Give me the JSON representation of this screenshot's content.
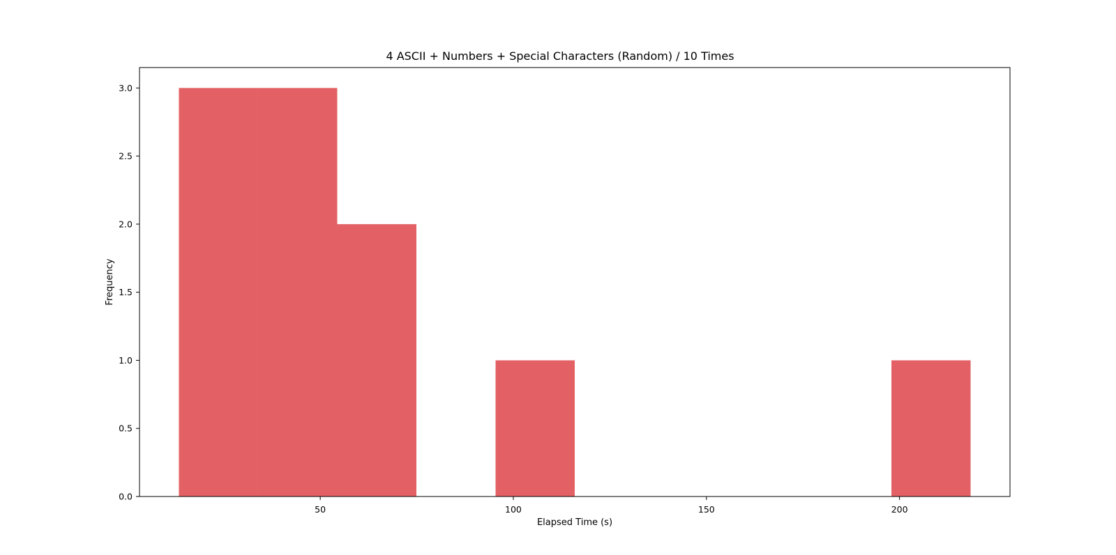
{
  "chart_data": {
    "type": "bar",
    "title": "4 ASCII + Numbers + Special Characters (Random) / 10 Times",
    "xlabel": "Elapsed Time (s)",
    "ylabel": "Frequency",
    "xlim": [
      3.2,
      228.6
    ],
    "ylim": [
      0,
      3.15
    ],
    "xticks": [
      50,
      100,
      150,
      200
    ],
    "xtick_labels": [
      "50",
      "100",
      "150",
      "200"
    ],
    "yticks": [
      0,
      0.5,
      1,
      1.5,
      2,
      2.5,
      3
    ],
    "ytick_labels": [
      "0.0",
      "0.5",
      "1.0",
      "1.5",
      "2.0",
      "2.5",
      "3.0"
    ],
    "bin_edges": [
      13.4,
      33.9,
      54.4,
      74.9,
      95.4,
      115.9,
      136.4,
      156.9,
      177.4,
      197.9,
      218.4
    ],
    "values": [
      3,
      3,
      2,
      0,
      1,
      0,
      0,
      0,
      0,
      1
    ],
    "bar_color": "#e36164",
    "grid": false,
    "legend": "none"
  }
}
